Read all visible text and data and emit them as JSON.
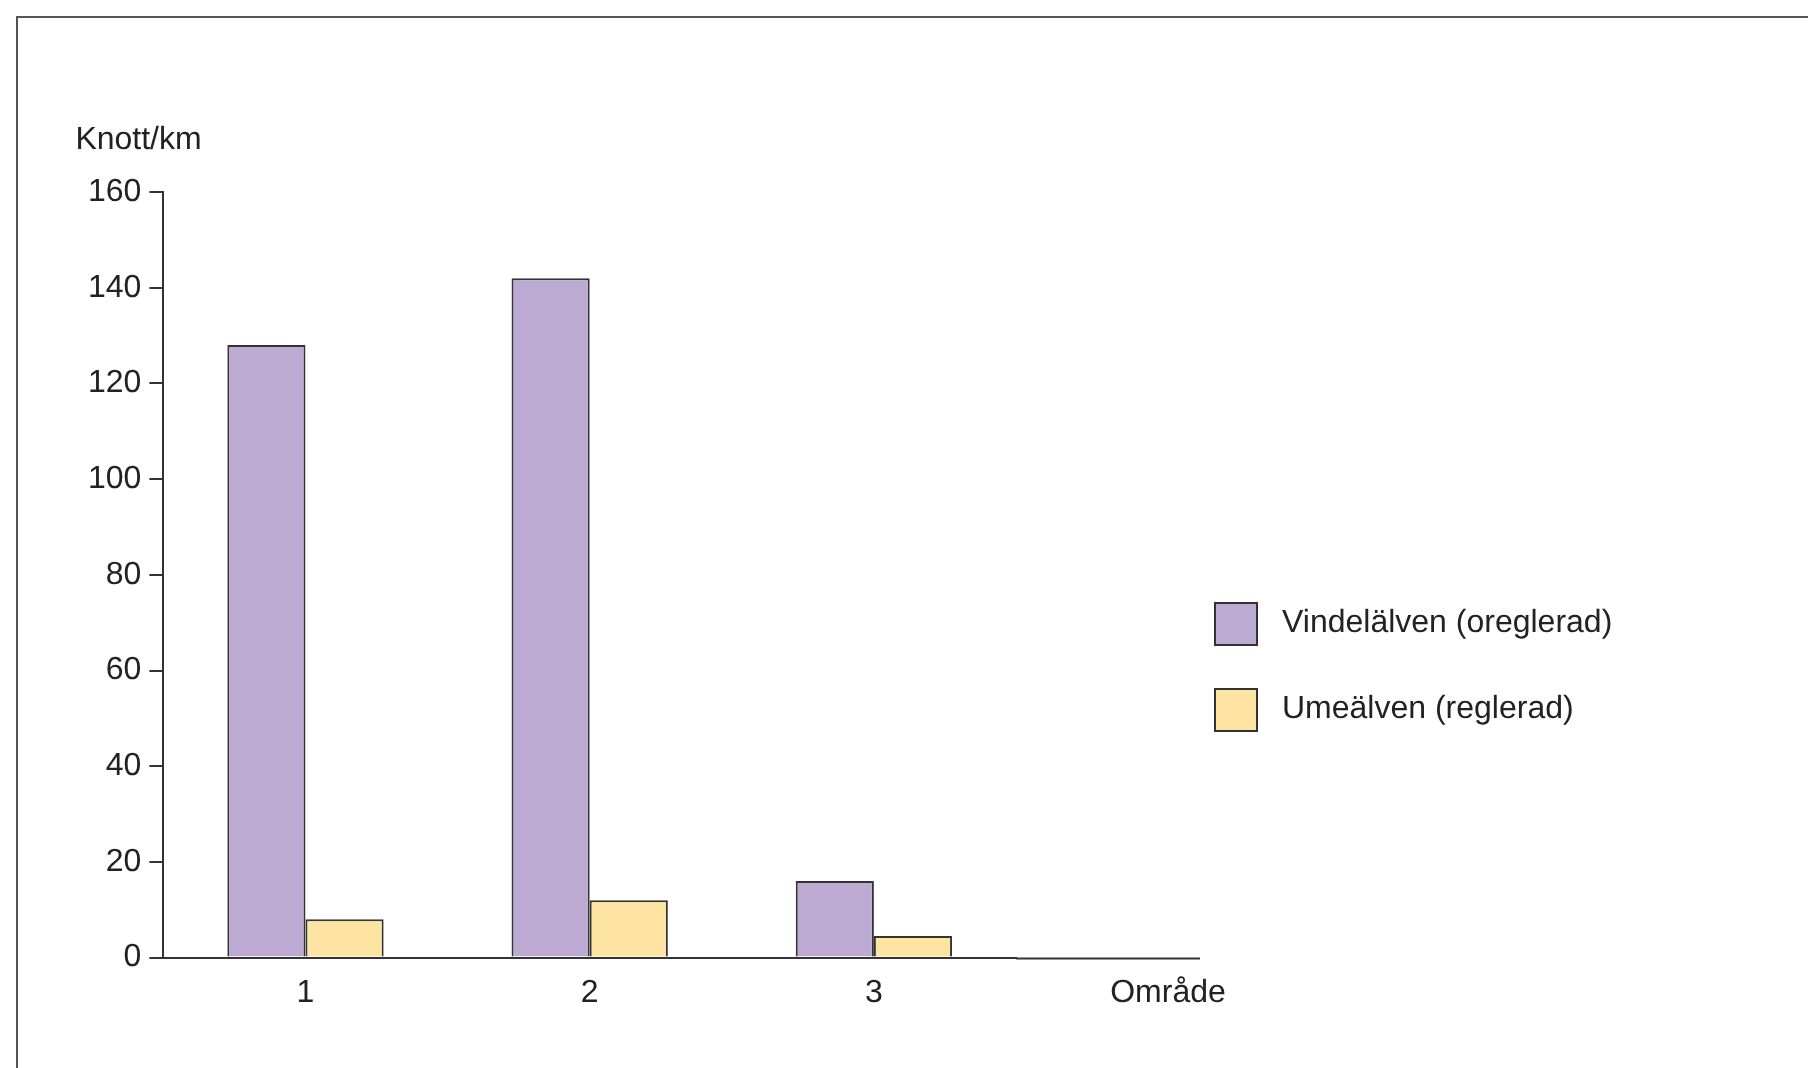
{
  "chart_data": {
    "type": "bar",
    "xlabel": "Område",
    "ylabel": "Knott/km",
    "categories": [
      "1",
      "2",
      "3"
    ],
    "series": [
      {
        "name": "Vindelälven (oreglerad)",
        "color": "#bcaad2",
        "values": [
          128,
          142,
          16
        ]
      },
      {
        "name": "Umeälven (reglerad)",
        "color": "#fde4a3",
        "values": [
          8,
          12,
          4.5
        ]
      }
    ],
    "ylim": [
      0,
      160
    ],
    "yticks": [
      0,
      20,
      40,
      60,
      80,
      100,
      120,
      140,
      160
    ],
    "grid": false,
    "legend": "right"
  }
}
